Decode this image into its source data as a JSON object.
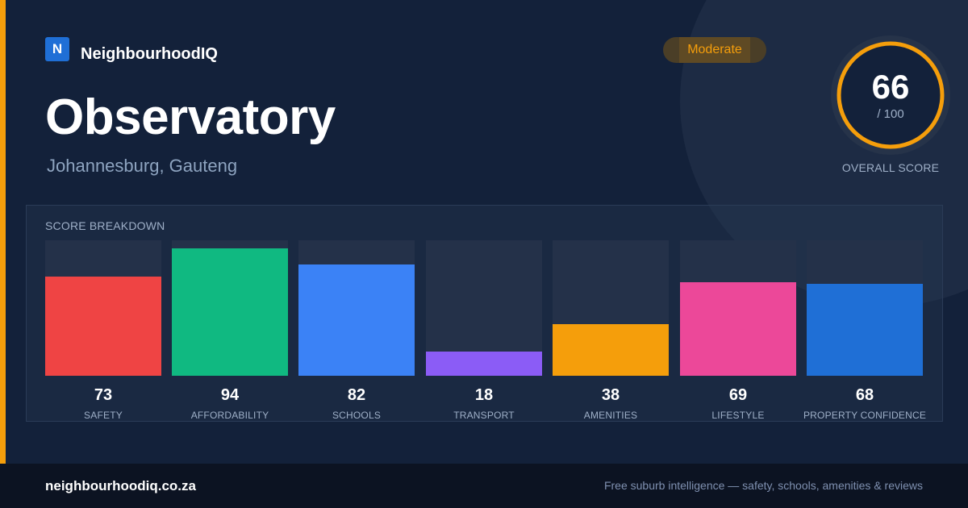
{
  "brand": {
    "mark": "N",
    "name": "NeighbourhoodIQ"
  },
  "suburb": {
    "name": "Observatory",
    "location": "Johannesburg, Gauteng"
  },
  "badge": {
    "label": "Moderate"
  },
  "overall": {
    "score": "66",
    "max": "/ 100",
    "label": "OVERALL SCORE",
    "value": 66
  },
  "breakdown": {
    "title": "SCORE BREAKDOWN",
    "items": [
      {
        "label": "SAFETY",
        "value": 73,
        "display": "73"
      },
      {
        "label": "AFFORDABILITY",
        "value": 94,
        "display": "94"
      },
      {
        "label": "SCHOOLS",
        "value": 82,
        "display": "82"
      },
      {
        "label": "TRANSPORT",
        "value": 18,
        "display": "18"
      },
      {
        "label": "AMENITIES",
        "value": 38,
        "display": "38"
      },
      {
        "label": "LIFESTYLE",
        "value": 69,
        "display": "69"
      },
      {
        "label": "PROPERTY CONFIDENCE",
        "value": 68,
        "display": "68"
      }
    ]
  },
  "footer": {
    "url": "neighbourhoodiq.co.za",
    "tagline": "Free suburb intelligence — safety, schools, amenities & reviews"
  },
  "colors": {
    "accent": "#f59e0b",
    "bars": [
      "#ef4444",
      "#10b981",
      "#3b82f6",
      "#8b5cf6",
      "#f59e0b",
      "#ec4899",
      "#1f6fd6"
    ]
  }
}
